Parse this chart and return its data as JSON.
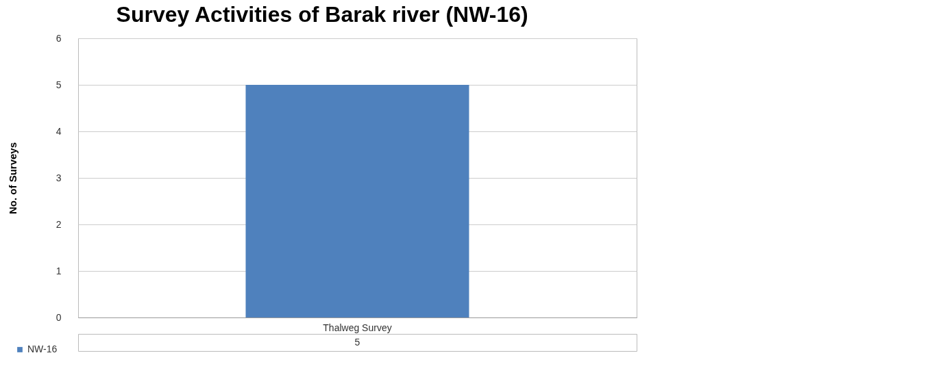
{
  "chart_data": {
    "type": "bar",
    "title": "Survey Activities of Barak river (NW-16)",
    "ylabel": "No. of Surveys",
    "categories": [
      "Thalweg Survey"
    ],
    "series": [
      {
        "name": "NW-16",
        "color": "#4f81bd",
        "values": [
          5
        ]
      }
    ],
    "ylim": [
      0,
      6
    ],
    "yticks": [
      0,
      1,
      2,
      3,
      4,
      5,
      6
    ],
    "grid": "y",
    "legend": "bottom left",
    "data_labels": true
  }
}
